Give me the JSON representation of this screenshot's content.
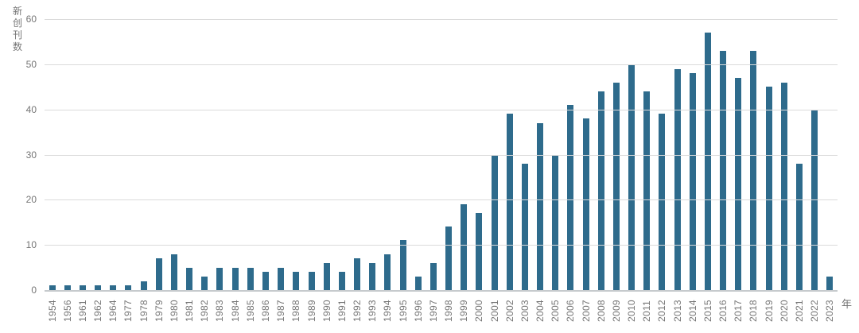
{
  "chart_data": {
    "type": "bar",
    "title": "",
    "ylabel": "新创刊数",
    "xlabel": "年",
    "categories": [
      "1954",
      "1956",
      "1961",
      "1962",
      "1964",
      "1977",
      "1978",
      "1979",
      "1980",
      "1981",
      "1982",
      "1983",
      "1984",
      "1985",
      "1986",
      "1987",
      "1988",
      "1989",
      "1990",
      "1991",
      "1992",
      "1993",
      "1994",
      "1995",
      "1996",
      "1997",
      "1998",
      "1999",
      "2000",
      "2001",
      "2002",
      "2003",
      "2004",
      "2005",
      "2006",
      "2007",
      "2008",
      "2009",
      "2010",
      "2011",
      "2012",
      "2013",
      "2014",
      "2015",
      "2016",
      "2017",
      "2018",
      "2019",
      "2020",
      "2021",
      "2022",
      "2023"
    ],
    "values": [
      1,
      1,
      1,
      1,
      1,
      1,
      2,
      7,
      8,
      5,
      3,
      5,
      5,
      5,
      4,
      5,
      4,
      4,
      6,
      4,
      7,
      6,
      8,
      11,
      3,
      6,
      14,
      19,
      17,
      30,
      39,
      28,
      37,
      30,
      41,
      38,
      44,
      46,
      50,
      44,
      39,
      49,
      48,
      57,
      53,
      47,
      53,
      45,
      46,
      28,
      40,
      3
    ],
    "ylim": [
      0,
      60
    ],
    "yticks": [
      0,
      10,
      20,
      30,
      40,
      50,
      60
    ],
    "grid": "horizontal",
    "legend": "none",
    "bar_color": "#2e6b8c",
    "grid_color": "#dadada",
    "axis_color": "#c6cacd",
    "text_color": "#757575"
  }
}
